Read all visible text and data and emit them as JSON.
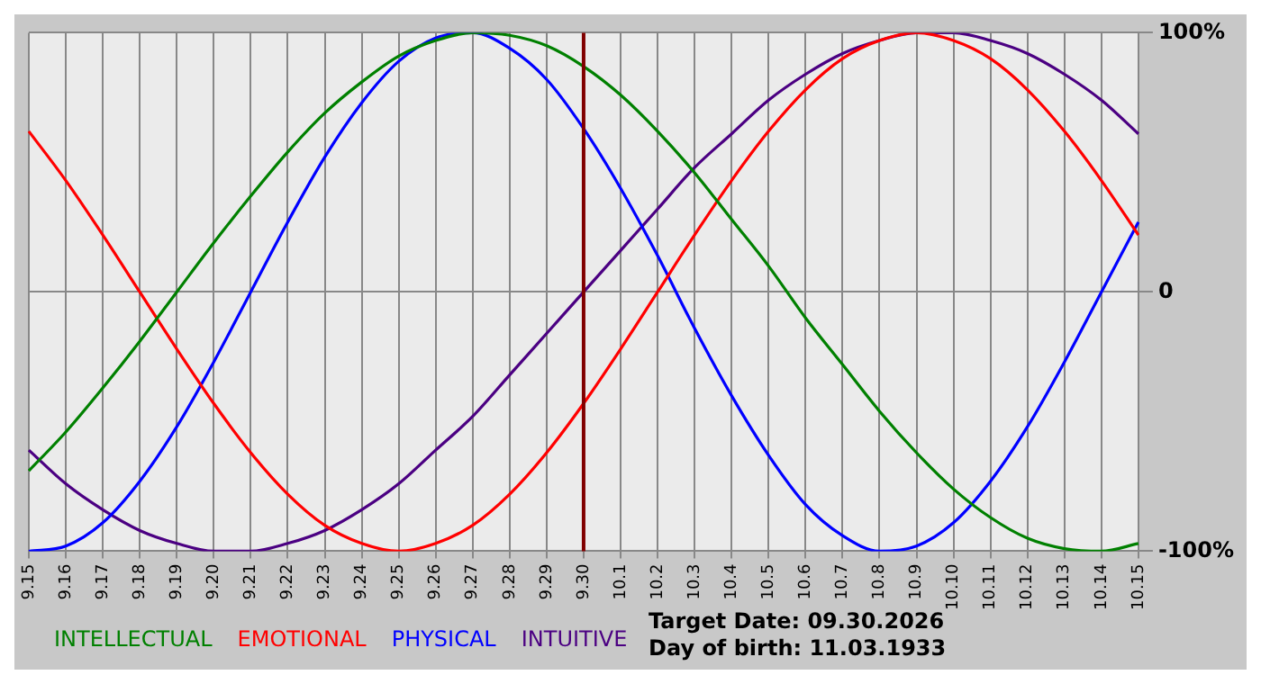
{
  "chart_data": {
    "type": "line",
    "categories": [
      "9.15",
      "9.16",
      "9.17",
      "9.18",
      "9.19",
      "9.20",
      "9.21",
      "9.22",
      "9.23",
      "9.24",
      "9.25",
      "9.26",
      "9.27",
      "9.28",
      "9.29",
      "9.30",
      "10.1",
      "10.2",
      "10.3",
      "10.4",
      "10.5",
      "10.6",
      "10.7",
      "10.8",
      "10.9",
      "10.10",
      "10.11",
      "10.12",
      "10.13",
      "10.14",
      "10.15"
    ],
    "series": [
      {
        "name": "INTELLECTUAL",
        "color": "#008000",
        "values": [
          -69,
          -54,
          -37,
          -19,
          0,
          19,
          37,
          54,
          69,
          81,
          91,
          97,
          100,
          99,
          95,
          87,
          76,
          62,
          46,
          28,
          10,
          -10,
          -28,
          -46,
          -62,
          -76,
          -87,
          -95,
          -99,
          -100,
          -97
        ]
      },
      {
        "name": "EMOTIONAL",
        "color": "#ff0000",
        "values": [
          62,
          43,
          22,
          0,
          -22,
          -43,
          -62,
          -78,
          -90,
          -97,
          -100,
          -97,
          -90,
          -78,
          -62,
          -43,
          -22,
          0,
          22,
          43,
          62,
          78,
          90,
          97,
          100,
          97,
          90,
          78,
          62,
          43,
          22
        ]
      },
      {
        "name": "PHYSICAL",
        "color": "#0000ff",
        "values": [
          -100,
          -98,
          -89,
          -73,
          -52,
          -27,
          0,
          27,
          52,
          73,
          89,
          98,
          100,
          94,
          82,
          63,
          40,
          14,
          -14,
          -40,
          -63,
          -82,
          -94,
          -100,
          -98,
          -89,
          -73,
          -52,
          -27,
          0,
          27
        ]
      },
      {
        "name": "INTUITIVE",
        "color": "#4b0082",
        "values": [
          -61,
          -74,
          -84,
          -92,
          -97,
          -100,
          -100,
          -97,
          -92,
          -84,
          -74,
          -61,
          -48,
          -32,
          -16,
          0,
          16,
          32,
          48,
          61,
          74,
          84,
          92,
          97,
          100,
          100,
          97,
          92,
          84,
          74,
          61
        ]
      }
    ],
    "ylim": [
      -100,
      100
    ],
    "yticks": [
      {
        "value": -100,
        "label": "-100%"
      },
      0,
      {
        "value": 100,
        "label": "100%"
      }
    ],
    "ref_lines": [
      {
        "axis": "x",
        "value": "9.30",
        "color": "#800000"
      }
    ],
    "annotations": [
      "Target Date: 09.30.2026",
      "Day of birth: 11.03.1933"
    ],
    "grid": true,
    "legend": "bottom",
    "marker": "none",
    "line_style": "solid"
  }
}
